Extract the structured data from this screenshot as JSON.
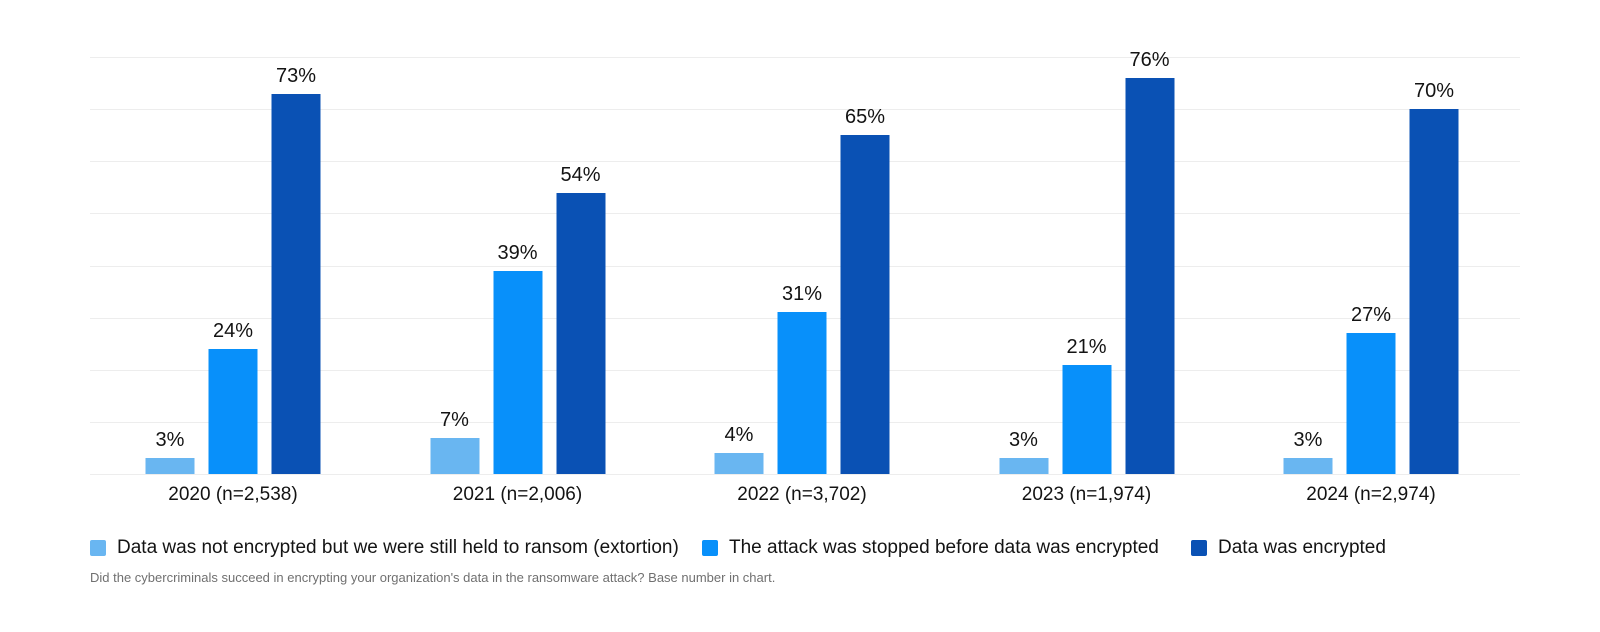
{
  "chart_data": {
    "type": "bar",
    "title": "",
    "categories": [
      "2020 (n=2,538)",
      "2021 (n=2,006)",
      "2022 (n=3,702)",
      "2023 (n=1,974)",
      "2024 (n=2,974)"
    ],
    "series": [
      {
        "name": "Data was not encrypted but we were still held to ransom (extortion)",
        "color": "#69B6F1",
        "values": [
          3,
          7,
          4,
          3,
          3
        ]
      },
      {
        "name": "The attack was stopped before data was encrypted",
        "color": "#0890FA",
        "values": [
          24,
          39,
          31,
          21,
          27
        ]
      },
      {
        "name": "Data was encrypted",
        "color": "#0A51B4",
        "values": [
          73,
          54,
          65,
          76,
          70
        ]
      }
    ],
    "value_suffix": "%",
    "ylim": [
      0,
      80
    ],
    "gridline_step": 10,
    "grid": "on",
    "y_axis_labels": "none",
    "legend_position": "bottom",
    "footnote": "Did the cybercriminals succeed in encrypting your organization's data in the ransomware attack? Base number in chart."
  },
  "layout_colors": {
    "background": "#ffffff",
    "gridline": "#ededed",
    "label_text": "#131313",
    "footnote_text": "#707070"
  }
}
